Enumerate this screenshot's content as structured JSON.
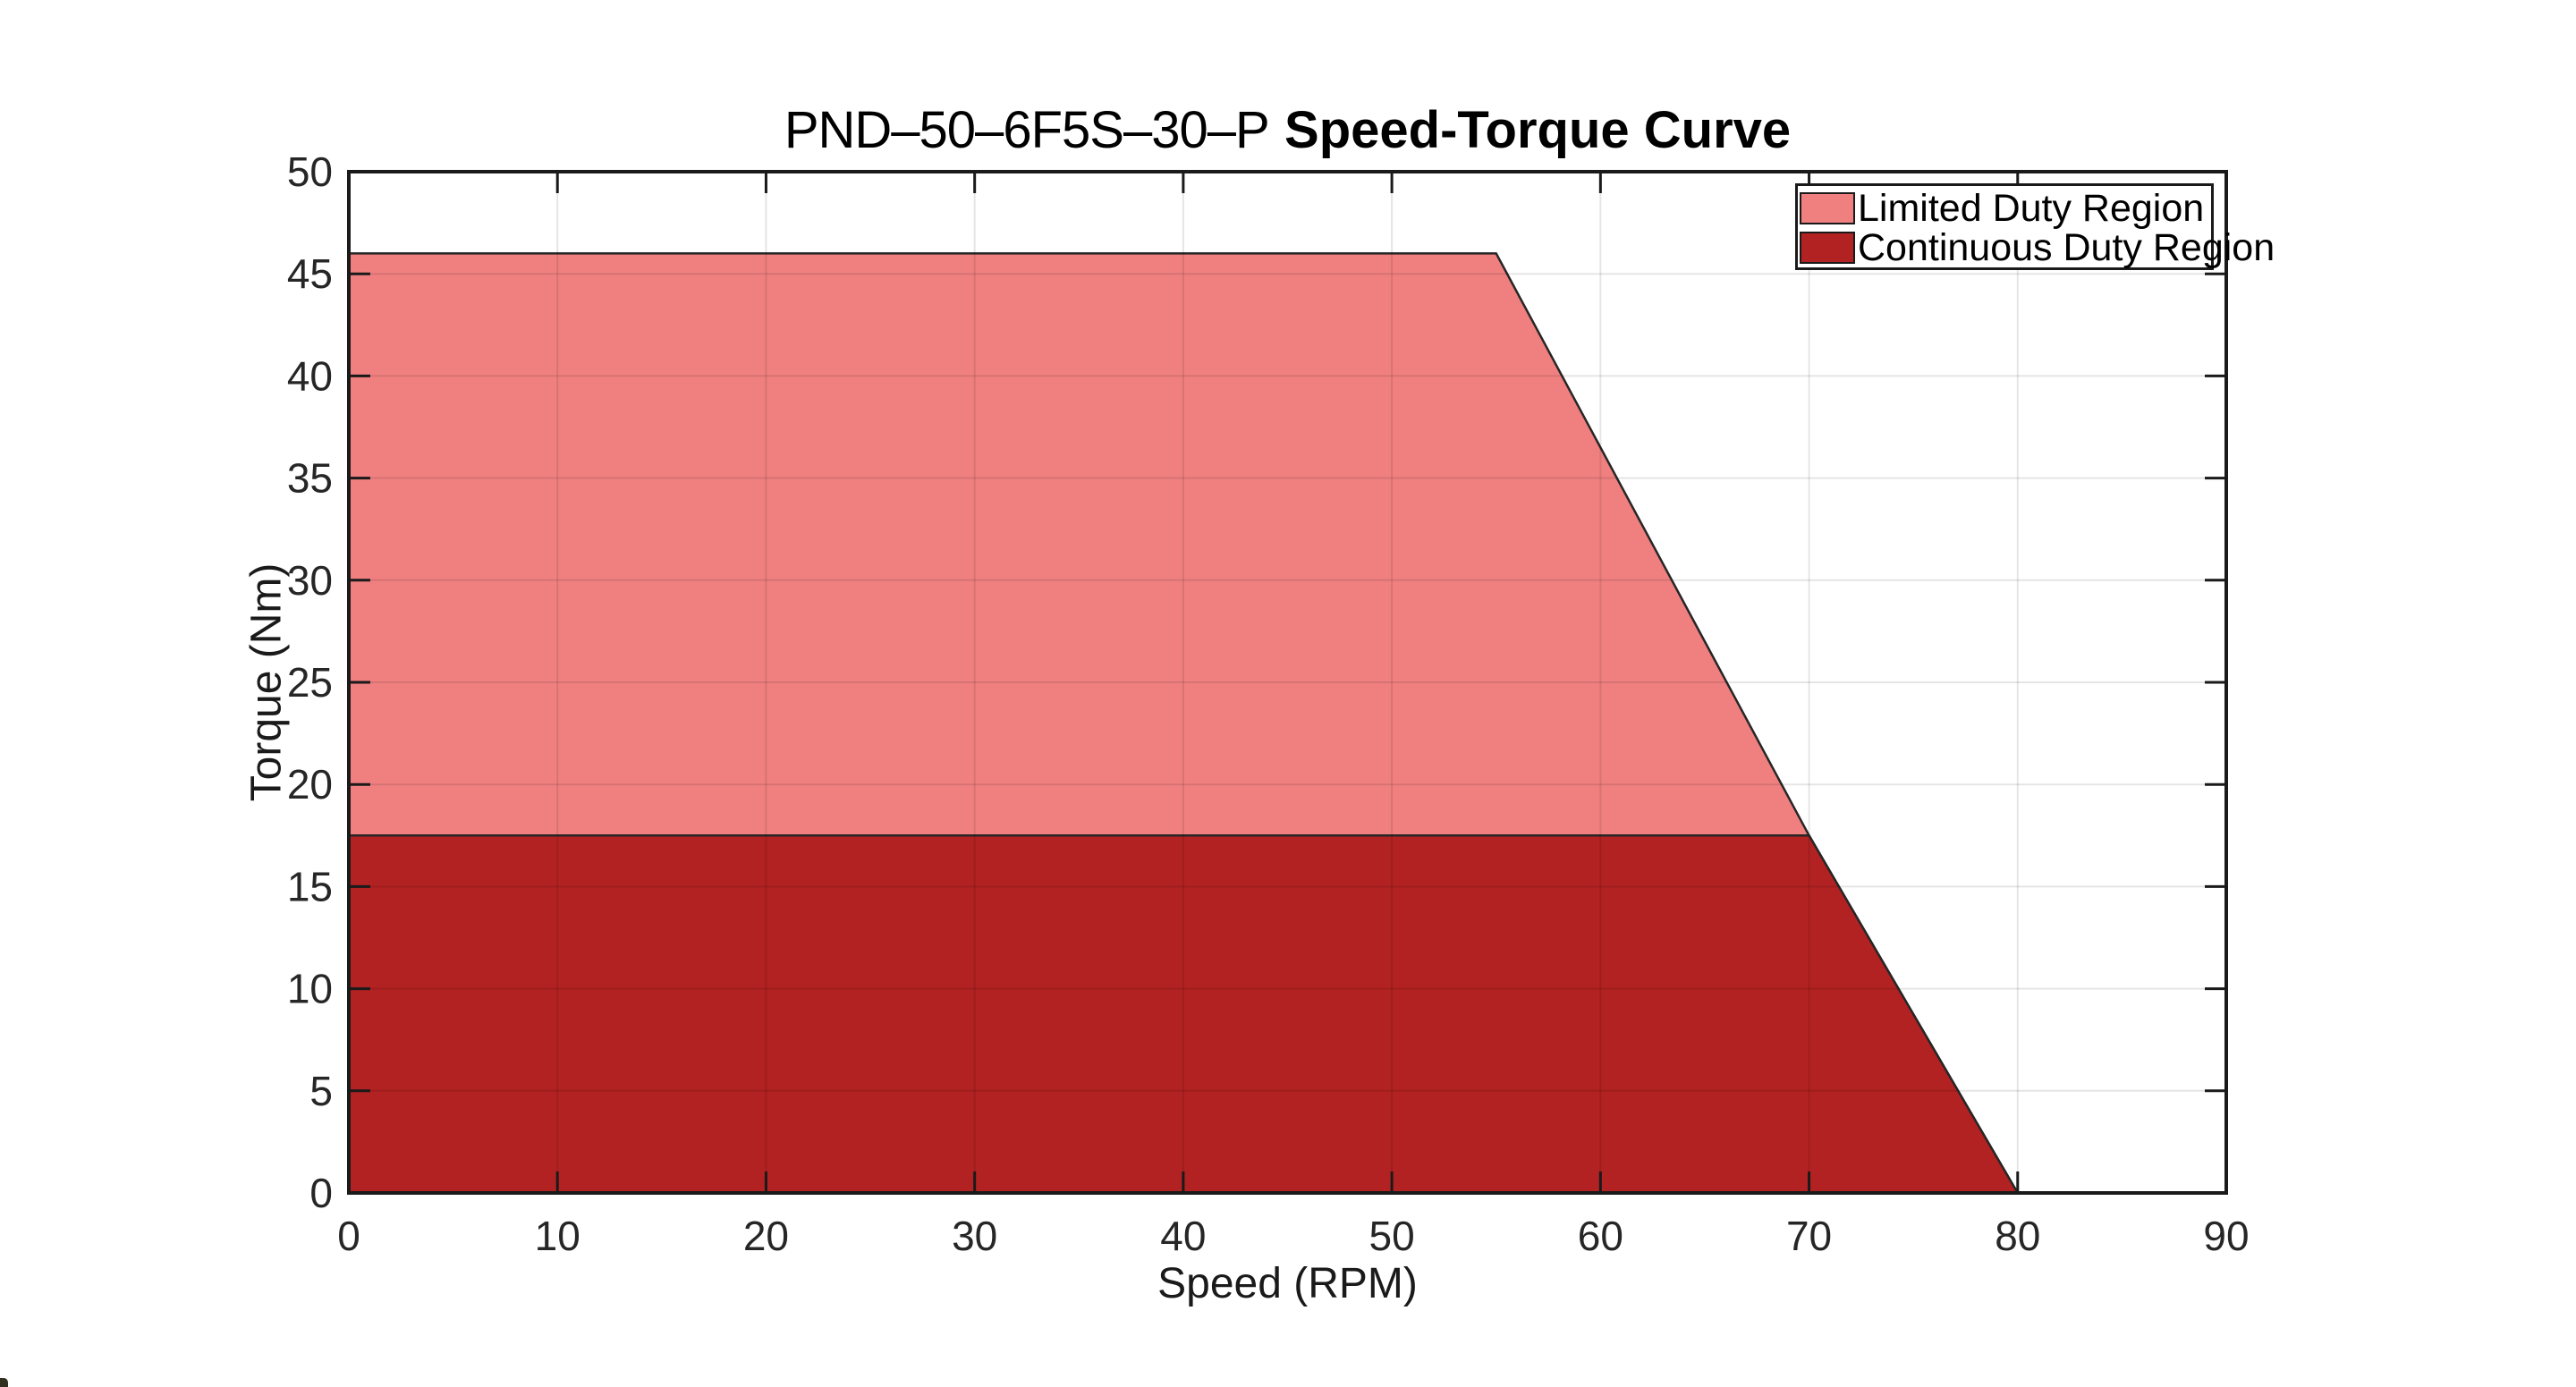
{
  "figure": {
    "title_model": "PND–50–6F5S–30–P",
    "title_main": "Speed-Torque Curve"
  },
  "chart_data": {
    "type": "area",
    "title": "PND–50–6F5S–30–P Speed-Torque Curve",
    "xlabel": "Speed (RPM)",
    "ylabel": "Torque (Nm)",
    "xlim": [
      0,
      90
    ],
    "ylim": [
      0,
      50
    ],
    "xticks": [
      0,
      10,
      20,
      30,
      40,
      50,
      60,
      70,
      80,
      90
    ],
    "yticks": [
      0,
      5,
      10,
      15,
      20,
      25,
      30,
      35,
      40,
      45,
      50
    ],
    "grid": true,
    "legend_position": "top-right-inside",
    "colors": {
      "axis": "#1a1a1a",
      "gridline": "rgba(0,0,0,0.10)",
      "tick_label": "#262626"
    },
    "series": [
      {
        "name": "Limited Duty Region",
        "fill": "#F08080",
        "edge": "#262626",
        "points": [
          [
            0,
            0
          ],
          [
            0,
            46
          ],
          [
            55,
            46
          ],
          [
            70,
            17.5
          ],
          [
            80,
            0
          ]
        ]
      },
      {
        "name": "Continuous Duty Region",
        "fill": "#B22222",
        "edge": "#262626",
        "points": [
          [
            0,
            0
          ],
          [
            0,
            17.5
          ],
          [
            70,
            17.5
          ],
          [
            80,
            0
          ]
        ]
      }
    ]
  }
}
